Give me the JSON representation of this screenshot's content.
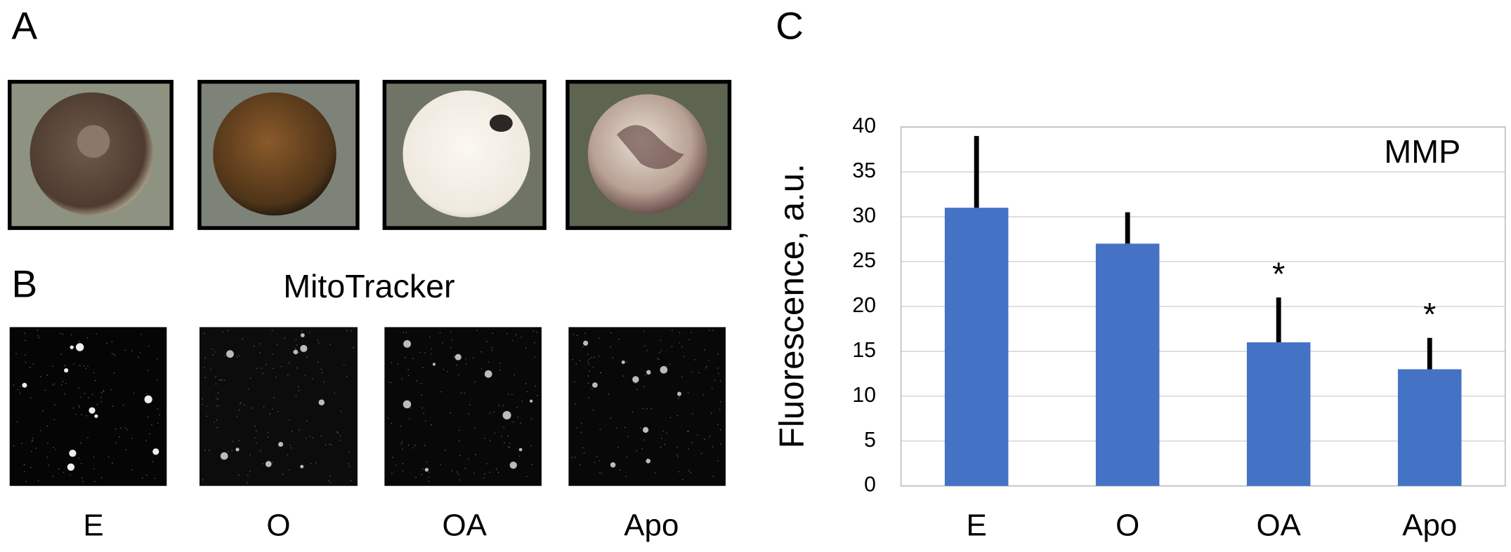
{
  "panels": {
    "letters": [
      "A",
      "B",
      "C"
    ],
    "b_title": "MitoTracker",
    "b_labels": [
      "E",
      "O",
      "OA",
      "Apo"
    ]
  },
  "chart_data": {
    "type": "bar",
    "y_label": "Fluorescence, a.u.",
    "inset_label": "MMP",
    "categories": [
      "E",
      "O",
      "OA",
      "Apo"
    ],
    "values": [
      31,
      27,
      16,
      13
    ],
    "errors": [
      8,
      3.5,
      5,
      3.5
    ],
    "annotations": [
      {
        "category": "OA",
        "text": "*"
      },
      {
        "category": "Apo",
        "text": "*"
      }
    ],
    "color": "#4472c4",
    "error_color": "#000000",
    "ylim": [
      0,
      40
    ],
    "yticks": [
      0,
      5,
      10,
      15,
      20,
      25,
      30,
      35,
      40
    ],
    "grid": true
  }
}
